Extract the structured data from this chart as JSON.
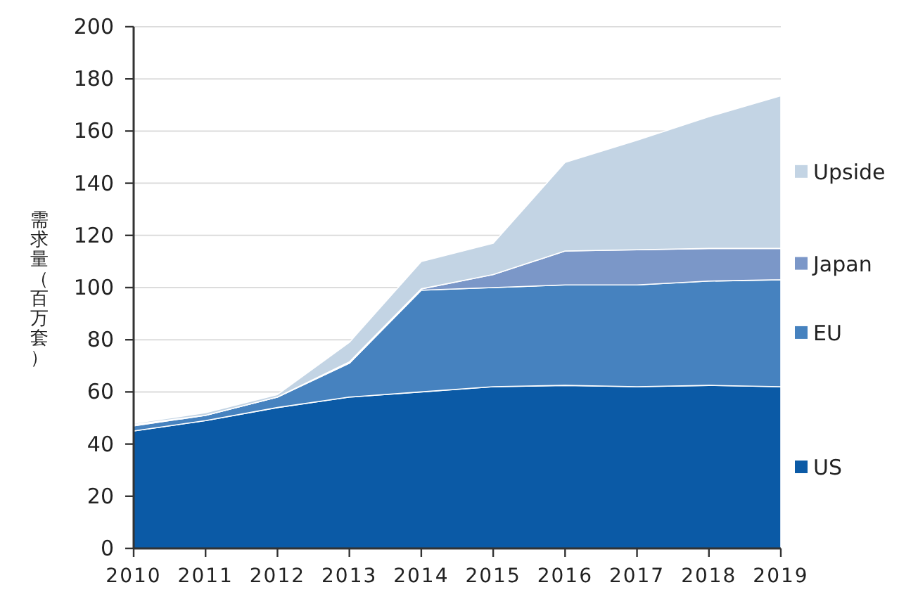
{
  "chart_data": {
    "type": "area",
    "stacked": true,
    "ylabel": "需求量（百万套）",
    "x": [
      2010,
      2011,
      2012,
      2013,
      2014,
      2015,
      2016,
      2017,
      2018,
      2019
    ],
    "xlim": [
      2010,
      2019
    ],
    "xticks": [
      2010,
      2011,
      2012,
      2013,
      2014,
      2015,
      2016,
      2017,
      2018,
      2019
    ],
    "ylim": [
      0,
      200
    ],
    "yticks": [
      0,
      20,
      40,
      60,
      80,
      100,
      120,
      140,
      160,
      180,
      200
    ],
    "grid": "y",
    "legend": "right",
    "series": [
      {
        "name": "US",
        "color": "#0b5aa6",
        "values": [
          45,
          49,
          54,
          58,
          60,
          62,
          62.5,
          62,
          62.5,
          62
        ]
      },
      {
        "name": "EU",
        "color": "#4682bf",
        "values": [
          2,
          2,
          4,
          13,
          39,
          38,
          38.5,
          39,
          40,
          41
        ]
      },
      {
        "name": "Japan",
        "color": "#7b97c8",
        "values": [
          0.5,
          0,
          0,
          0.5,
          0.5,
          5,
          13,
          13.5,
          12.5,
          12
        ]
      },
      {
        "name": "Upside",
        "color": "#c3d4e4",
        "values": [
          0.5,
          1,
          1,
          7.5,
          10.5,
          12,
          34,
          42,
          50.5,
          58.5
        ]
      }
    ]
  }
}
